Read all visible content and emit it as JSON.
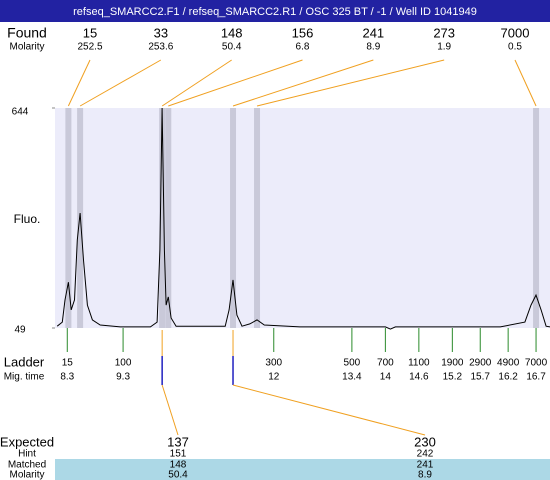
{
  "title": "refseq_SMARCC2.F1 / refseq_SMARCC2.R1 / OSC 325 BT / -1 / Well ID 1041949",
  "chart_data": {
    "type": "electropherogram",
    "y_label": "Fluo.",
    "ylim": [
      49,
      644
    ],
    "yticks": [
      49,
      644
    ],
    "xlim": [
      8.08,
      16.95
    ],
    "trace": {
      "color": "#000000",
      "x": [
        8.12,
        8.21,
        8.26,
        8.32,
        8.37,
        8.43,
        8.48,
        8.53,
        8.59,
        8.66,
        8.75,
        8.89,
        9.25,
        9.79,
        9.91,
        9.96,
        10.0,
        10.04,
        10.07,
        10.11,
        10.16,
        10.25,
        11.13,
        11.2,
        11.27,
        11.34,
        11.43,
        11.57,
        11.7,
        11.83,
        12.47,
        14.0,
        14.09,
        14.18,
        16.06,
        16.5,
        16.61,
        16.7,
        16.79,
        16.88,
        16.95
      ],
      "values": [
        54,
        65,
        125,
        173,
        98,
        125,
        287,
        360,
        233,
        111,
        71,
        57,
        52,
        52,
        65,
        260,
        644,
        260,
        111,
        133,
        76,
        54,
        54,
        98,
        179,
        84,
        54,
        60,
        71,
        57,
        52,
        52,
        46,
        52,
        52,
        65,
        111,
        138,
        98,
        54,
        52
      ]
    }
  },
  "found": {
    "label": "Found",
    "molarity_label": "Molarity",
    "peaks": [
      {
        "size": 15,
        "molarity": 252.5,
        "time": 8.32
      },
      {
        "size": 33,
        "molarity": 253.6,
        "time": 8.53
      },
      {
        "size": 148,
        "molarity": 50.4,
        "time": 10.0
      },
      {
        "size": 156,
        "molarity": 6.8,
        "time": 10.11
      },
      {
        "size": 241,
        "molarity": 8.9,
        "time": 11.27
      },
      {
        "size": 273,
        "molarity": 1.9,
        "time": 11.7
      },
      {
        "size": 7000,
        "molarity": 0.5,
        "time": 16.7
      }
    ]
  },
  "ladder": {
    "label": "Ladder",
    "time_label": "Mig. time",
    "sizes": [
      15,
      100,
      300,
      500,
      700,
      1100,
      1900,
      2900,
      4900,
      7000
    ],
    "times": [
      8.3,
      9.3,
      12,
      13.4,
      14,
      14.6,
      15.2,
      15.7,
      16.2,
      16.7
    ]
  },
  "expected": {
    "label": "Expected",
    "hint_label": "Hint",
    "matched_label": "Matched",
    "molarity_label": "Molarity",
    "columns": [
      {
        "expected": 137,
        "hint": 151,
        "matched": 148,
        "molarity": 50.4
      },
      {
        "expected": 230,
        "hint": 242,
        "matched": 241,
        "molarity": 8.9
      }
    ]
  }
}
